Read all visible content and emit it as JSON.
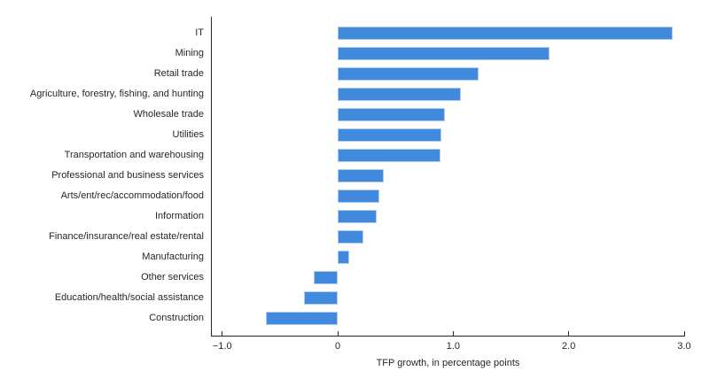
{
  "chart_data": {
    "type": "bar",
    "orientation": "horizontal",
    "title": "",
    "xlabel": "TFP growth, in percentage points",
    "ylabel": "",
    "categories": [
      "IT",
      "Mining",
      "Retail trade",
      "Agriculture, forestry, fishing, and hunting",
      "Wholesale trade",
      "Utilities",
      "Transportation and warehousing",
      "Professional and business services",
      "Arts/ent/rec/accommodation/food",
      "Information",
      "Finance/insurance/real estate/rental",
      "Manufacturing",
      "Other services",
      "Education/health/social assistance",
      "Construction"
    ],
    "values": [
      2.9,
      1.83,
      1.22,
      1.07,
      0.93,
      0.9,
      0.89,
      0.4,
      0.36,
      0.34,
      0.22,
      0.1,
      -0.21,
      -0.29,
      -0.62
    ],
    "xlim": [
      -1.09,
      3.0
    ],
    "xticks": [
      -1.0,
      0,
      1.0,
      2.0,
      3.0
    ],
    "xtick_labels": [
      "−1.0",
      "0",
      "1.0",
      "2.0",
      "3.0"
    ],
    "grid": false,
    "legend": null,
    "bar_color": "#4189DD",
    "bar_edge_color": "#AECBEE",
    "axis_color": "#262626",
    "text_color": "#262626",
    "background": "#FFFFFF"
  }
}
